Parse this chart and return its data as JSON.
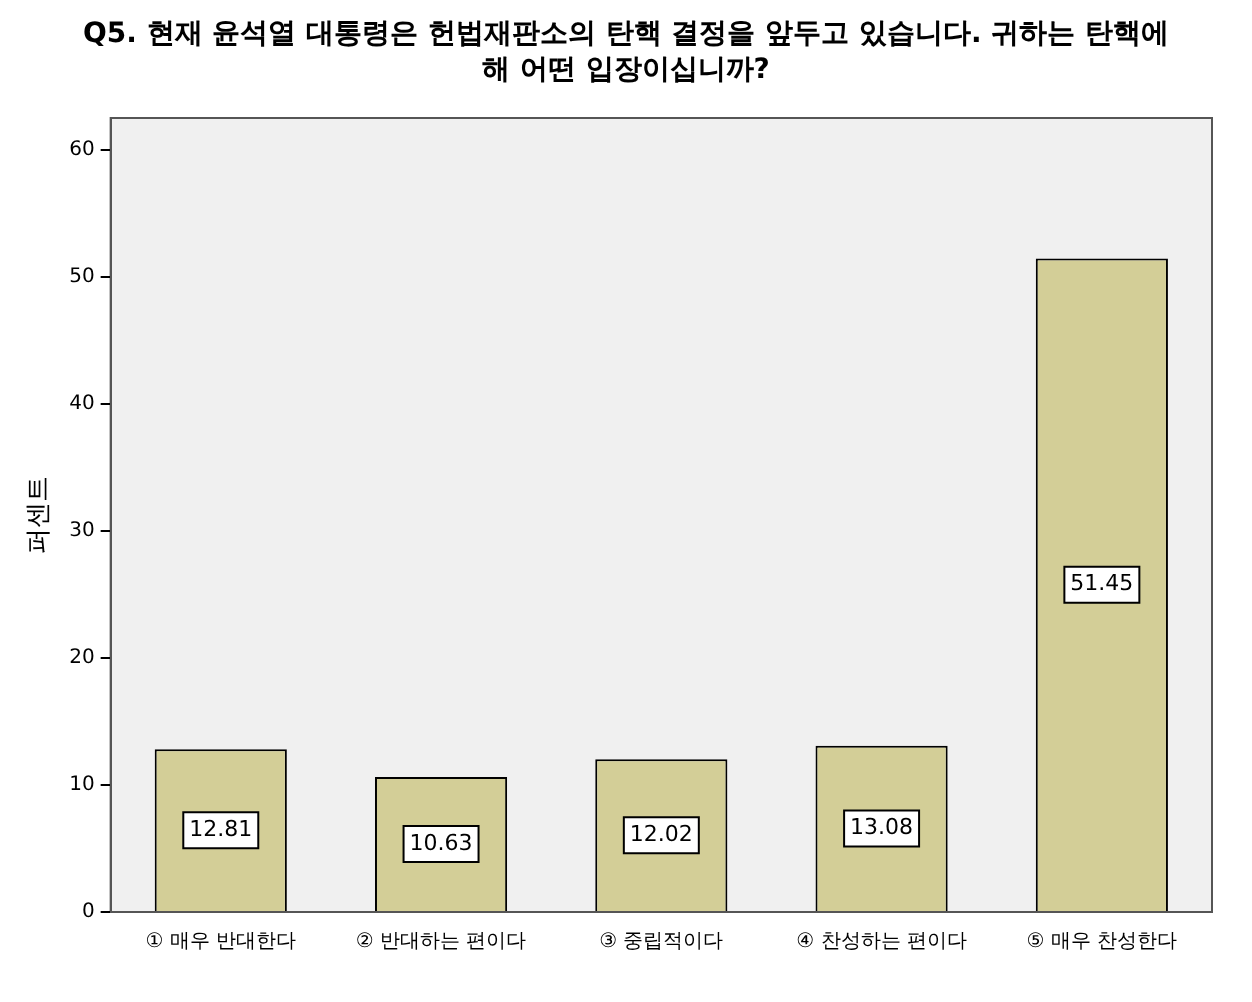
{
  "chart_data": {
    "type": "bar",
    "title": "Q5. 현재 윤석열 대통령은 헌법재판소의 탄핵 결정을 앞두고 있습니다. 귀하는 탄핵에 해 어떤 입장이십니까?",
    "ylabel": "퍼센트",
    "categories": [
      "① 매우 반대한다",
      "② 반대하는 편이다",
      "③ 중립적이다",
      "④ 찬성하는 편이다",
      "⑤ 매우 찬성한다"
    ],
    "values": [
      12.81,
      10.63,
      12.02,
      13.08,
      51.45
    ],
    "color": "#d3ce97",
    "ylim": [
      0,
      62.5
    ],
    "yticks": [
      0,
      10,
      20,
      30,
      40,
      50,
      60
    ],
    "data_labels": true,
    "grid": false,
    "legend": false
  }
}
